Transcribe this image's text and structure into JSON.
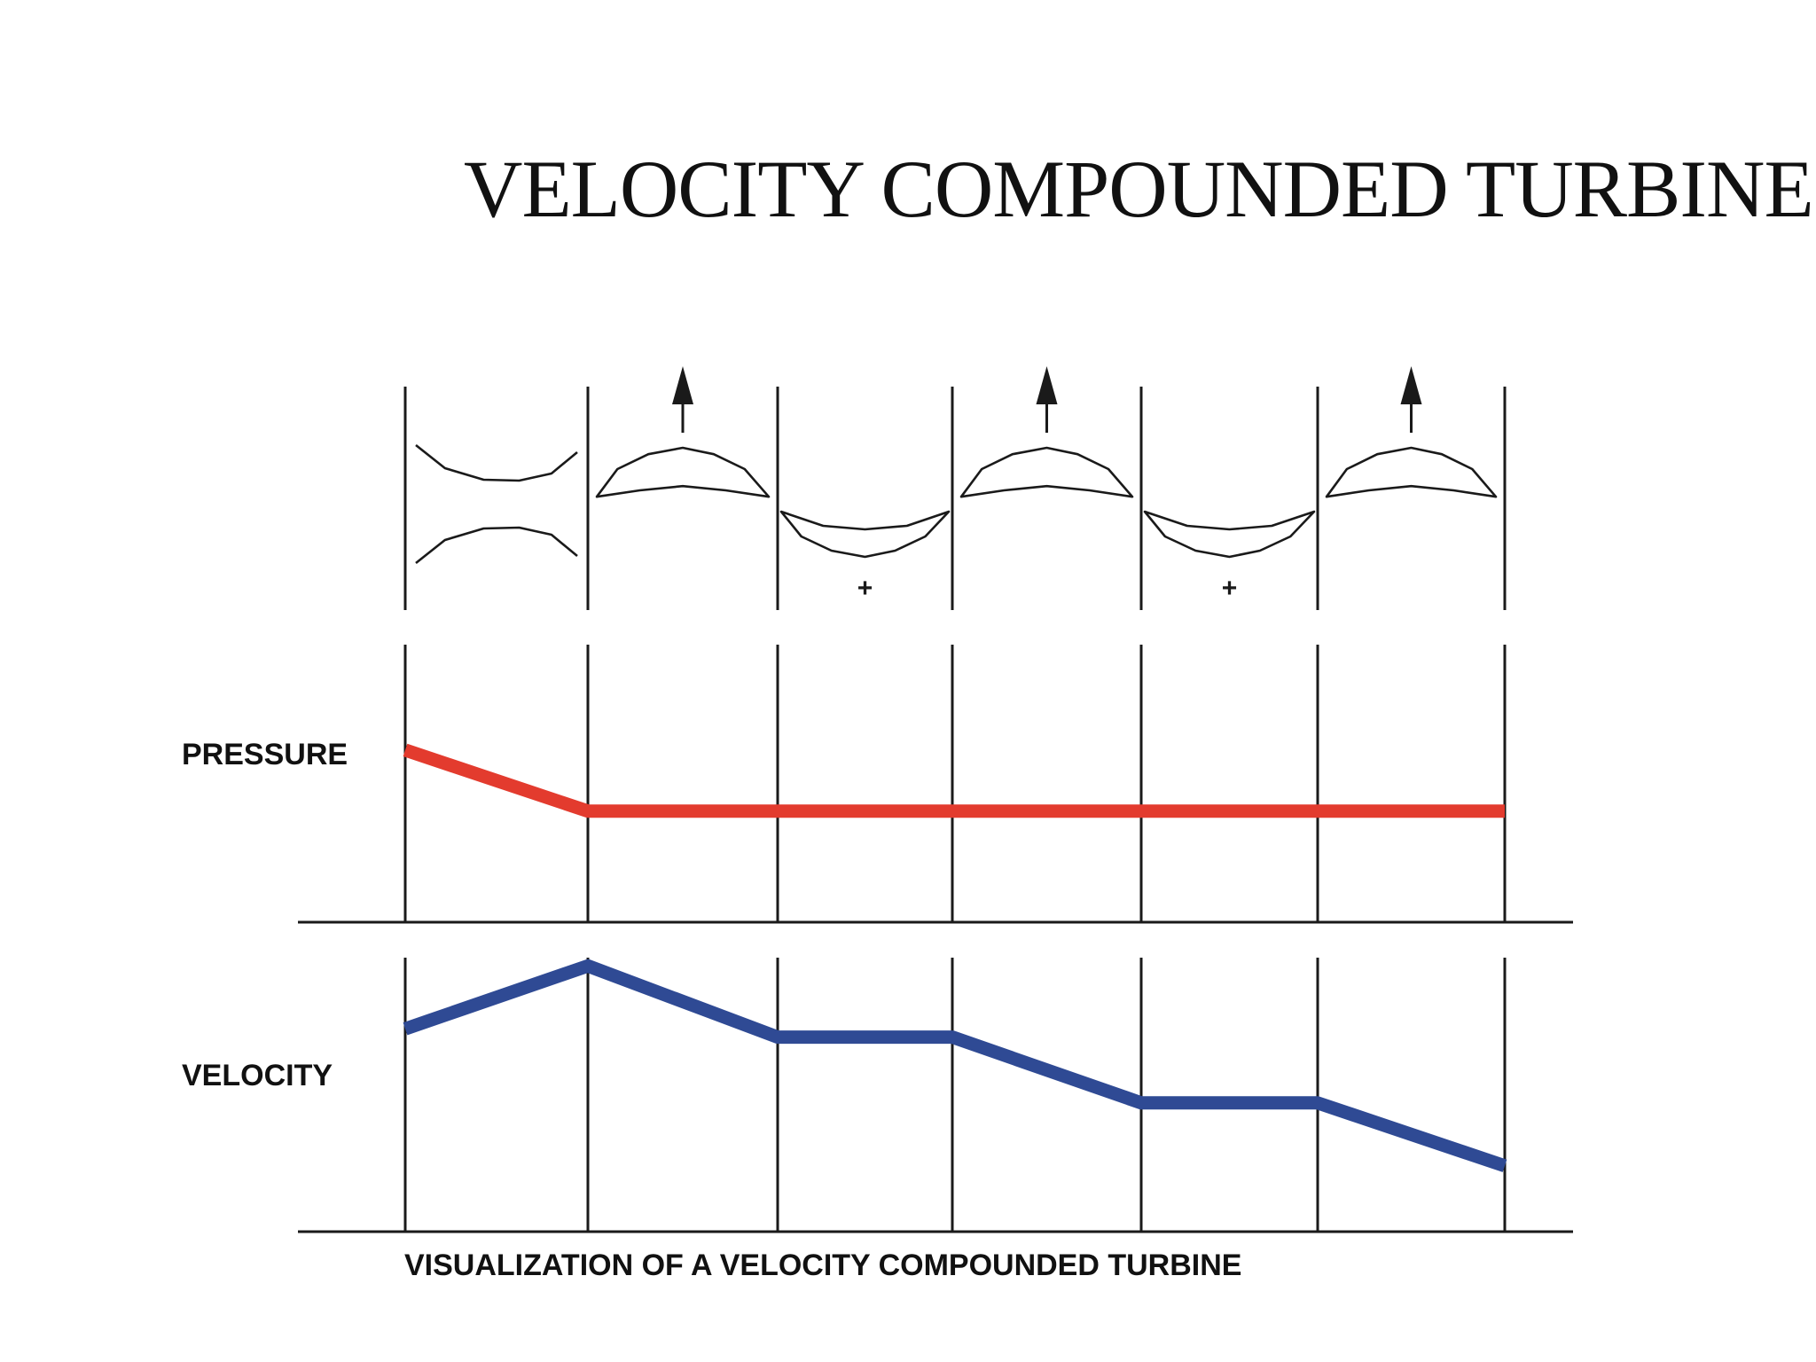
{
  "title": "VELOCITY COMPOUNDED TURBINE",
  "caption": "VISUALIZATION OF A VELOCITY COMPOUNDED TURBINE",
  "rows": {
    "pressure_label": "PRESSURE",
    "velocity_label": "VELOCITY"
  },
  "stages": [
    {
      "kind": "nozzle",
      "motion_arrow": false,
      "plus_mark": false
    },
    {
      "kind": "moving-blade",
      "motion_arrow": true,
      "plus_mark": false
    },
    {
      "kind": "fixed-blade",
      "motion_arrow": false,
      "plus_mark": true
    },
    {
      "kind": "moving-blade",
      "motion_arrow": true,
      "plus_mark": false
    },
    {
      "kind": "fixed-blade",
      "motion_arrow": false,
      "plus_mark": true
    },
    {
      "kind": "moving-blade",
      "motion_arrow": true,
      "plus_mark": false
    }
  ],
  "plus_symbol": "+",
  "curves": {
    "pressure": {
      "color": "#e33b2e",
      "values": [
        0.62,
        0.4,
        0.4,
        0.4,
        0.4,
        0.4,
        0.4
      ]
    },
    "velocity": {
      "color": "#2f4a94",
      "values": [
        0.74,
        0.97,
        0.71,
        0.71,
        0.47,
        0.47,
        0.24
      ]
    }
  }
}
